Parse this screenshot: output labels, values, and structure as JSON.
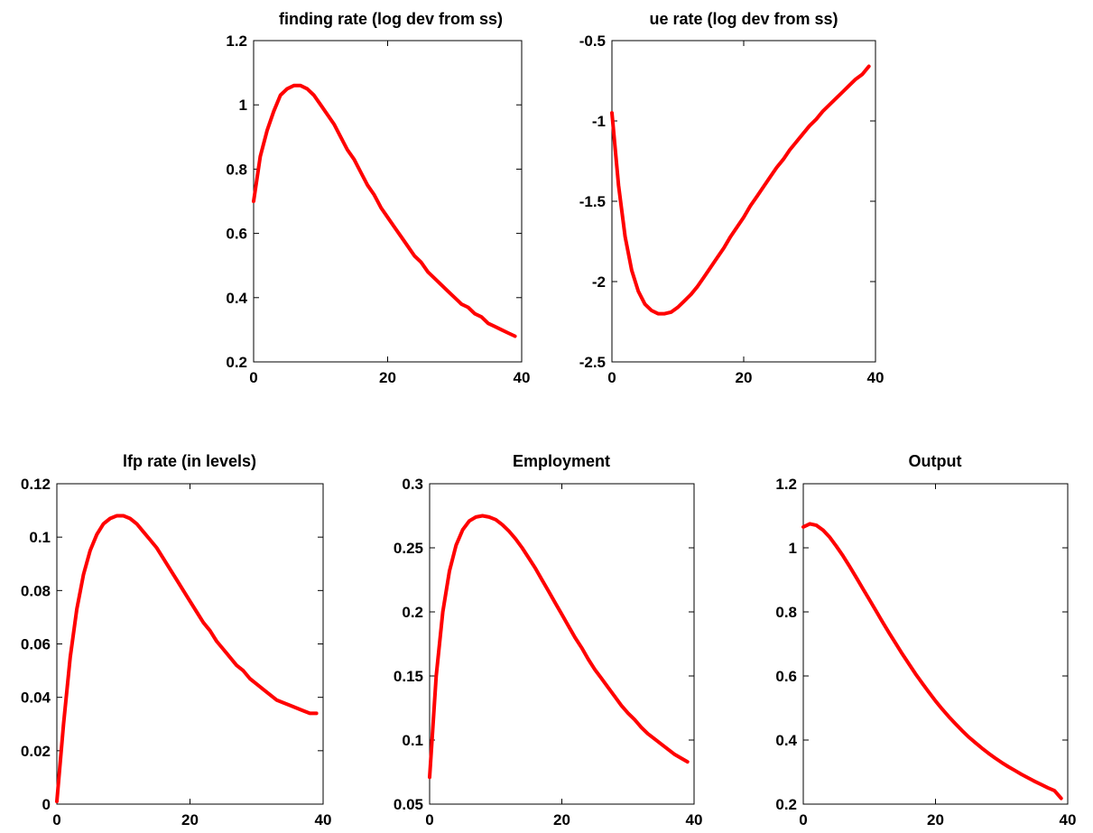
{
  "chart_data": [
    {
      "type": "line",
      "title": "finding rate (log dev from ss)",
      "xlim": [
        0,
        40
      ],
      "ylim": [
        0.2,
        1.2
      ],
      "xticks": [
        "0",
        "20",
        "40"
      ],
      "yticks": [
        "0.2",
        "0.4",
        "0.6",
        "0.8",
        "1",
        "1.2"
      ],
      "grid": false,
      "series": [
        {
          "color": "#ff0000",
          "x": [
            0,
            1,
            2,
            3,
            4,
            5,
            6,
            7,
            8,
            9,
            10,
            11,
            12,
            13,
            14,
            15,
            16,
            17,
            18,
            19,
            20,
            21,
            22,
            23,
            24,
            25,
            26,
            27,
            28,
            29,
            30,
            31,
            32,
            33,
            34,
            35,
            36,
            37,
            38,
            39
          ],
          "y": [
            0.7,
            0.84,
            0.92,
            0.98,
            1.03,
            1.05,
            1.06,
            1.06,
            1.05,
            1.03,
            1.0,
            0.97,
            0.94,
            0.9,
            0.86,
            0.83,
            0.79,
            0.75,
            0.72,
            0.68,
            0.65,
            0.62,
            0.59,
            0.56,
            0.53,
            0.51,
            0.48,
            0.46,
            0.44,
            0.42,
            0.4,
            0.38,
            0.37,
            0.35,
            0.34,
            0.32,
            0.31,
            0.3,
            0.29,
            0.28
          ]
        }
      ]
    },
    {
      "type": "line",
      "title": "ue rate (log dev from ss)",
      "xlim": [
        0,
        40
      ],
      "ylim": [
        -2.5,
        -0.5
      ],
      "xticks": [
        "0",
        "20",
        "40"
      ],
      "yticks": [
        "-2.5",
        "-2",
        "-1.5",
        "-1",
        "-0.5"
      ],
      "grid": false,
      "series": [
        {
          "color": "#ff0000",
          "x": [
            0,
            1,
            2,
            3,
            4,
            5,
            6,
            7,
            8,
            9,
            10,
            11,
            12,
            13,
            14,
            15,
            16,
            17,
            18,
            19,
            20,
            21,
            22,
            23,
            24,
            25,
            26,
            27,
            28,
            29,
            30,
            31,
            32,
            33,
            34,
            35,
            36,
            37,
            38,
            39
          ],
          "y": [
            -0.95,
            -1.4,
            -1.72,
            -1.93,
            -2.06,
            -2.14,
            -2.18,
            -2.2,
            -2.2,
            -2.19,
            -2.16,
            -2.12,
            -2.08,
            -2.03,
            -1.97,
            -1.91,
            -1.85,
            -1.79,
            -1.72,
            -1.66,
            -1.6,
            -1.53,
            -1.47,
            -1.41,
            -1.35,
            -1.29,
            -1.24,
            -1.18,
            -1.13,
            -1.08,
            -1.03,
            -0.99,
            -0.94,
            -0.9,
            -0.86,
            -0.82,
            -0.78,
            -0.74,
            -0.71,
            -0.66
          ]
        }
      ]
    },
    {
      "type": "line",
      "title": "lfp rate (in levels)",
      "xlim": [
        0,
        40
      ],
      "ylim": [
        0,
        0.12
      ],
      "xticks": [
        "0",
        "20",
        "40"
      ],
      "yticks": [
        "0",
        "0.02",
        "0.04",
        "0.06",
        "0.08",
        "0.1",
        "0.12"
      ],
      "grid": false,
      "series": [
        {
          "color": "#ff0000",
          "x": [
            0,
            1,
            2,
            3,
            4,
            5,
            6,
            7,
            8,
            9,
            10,
            11,
            12,
            13,
            14,
            15,
            16,
            17,
            18,
            19,
            20,
            21,
            22,
            23,
            24,
            25,
            26,
            27,
            28,
            29,
            30,
            31,
            32,
            33,
            34,
            35,
            36,
            37,
            38,
            39
          ],
          "y": [
            0.001,
            0.03,
            0.055,
            0.073,
            0.086,
            0.095,
            0.101,
            0.105,
            0.107,
            0.108,
            0.108,
            0.107,
            0.105,
            0.102,
            0.099,
            0.096,
            0.092,
            0.088,
            0.084,
            0.08,
            0.076,
            0.072,
            0.068,
            0.065,
            0.061,
            0.058,
            0.055,
            0.052,
            0.05,
            0.047,
            0.045,
            0.043,
            0.041,
            0.039,
            0.038,
            0.037,
            0.036,
            0.035,
            0.034,
            0.034
          ]
        }
      ]
    },
    {
      "type": "line",
      "title": "Employment",
      "xlim": [
        0,
        40
      ],
      "ylim": [
        0.05,
        0.3
      ],
      "xticks": [
        "0",
        "20",
        "40"
      ],
      "yticks": [
        "0.05",
        "0.1",
        "0.15",
        "0.2",
        "0.25",
        "0.3"
      ],
      "grid": false,
      "series": [
        {
          "color": "#ff0000",
          "x": [
            0,
            1,
            2,
            3,
            4,
            5,
            6,
            7,
            8,
            9,
            10,
            11,
            12,
            13,
            14,
            15,
            16,
            17,
            18,
            19,
            20,
            21,
            22,
            23,
            24,
            25,
            26,
            27,
            28,
            29,
            30,
            31,
            32,
            33,
            34,
            35,
            36,
            37,
            38,
            39
          ],
          "y": [
            0.071,
            0.15,
            0.2,
            0.232,
            0.252,
            0.264,
            0.271,
            0.274,
            0.275,
            0.274,
            0.272,
            0.268,
            0.263,
            0.257,
            0.25,
            0.242,
            0.234,
            0.225,
            0.216,
            0.207,
            0.198,
            0.189,
            0.18,
            0.172,
            0.163,
            0.155,
            0.148,
            0.141,
            0.134,
            0.127,
            0.121,
            0.116,
            0.11,
            0.105,
            0.101,
            0.097,
            0.093,
            0.089,
            0.086,
            0.083
          ]
        }
      ]
    },
    {
      "type": "line",
      "title": "Output",
      "xlim": [
        0,
        40
      ],
      "ylim": [
        0.2,
        1.2
      ],
      "xticks": [
        "0",
        "20",
        "40"
      ],
      "yticks": [
        "0.2",
        "0.4",
        "0.6",
        "0.8",
        "1",
        "1.2"
      ],
      "grid": false,
      "series": [
        {
          "color": "#ff0000",
          "x": [
            0,
            1,
            2,
            3,
            4,
            5,
            6,
            7,
            8,
            9,
            10,
            11,
            12,
            13,
            14,
            15,
            16,
            17,
            18,
            19,
            20,
            21,
            22,
            23,
            24,
            25,
            26,
            27,
            28,
            29,
            30,
            31,
            32,
            33,
            34,
            35,
            36,
            37,
            38,
            39
          ],
          "y": [
            1.065,
            1.075,
            1.07,
            1.055,
            1.033,
            1.005,
            0.975,
            0.942,
            0.908,
            0.873,
            0.838,
            0.803,
            0.768,
            0.734,
            0.701,
            0.668,
            0.637,
            0.606,
            0.577,
            0.549,
            0.522,
            0.497,
            0.473,
            0.451,
            0.43,
            0.41,
            0.392,
            0.375,
            0.359,
            0.344,
            0.33,
            0.317,
            0.305,
            0.293,
            0.282,
            0.271,
            0.261,
            0.251,
            0.242,
            0.218
          ]
        }
      ]
    }
  ]
}
